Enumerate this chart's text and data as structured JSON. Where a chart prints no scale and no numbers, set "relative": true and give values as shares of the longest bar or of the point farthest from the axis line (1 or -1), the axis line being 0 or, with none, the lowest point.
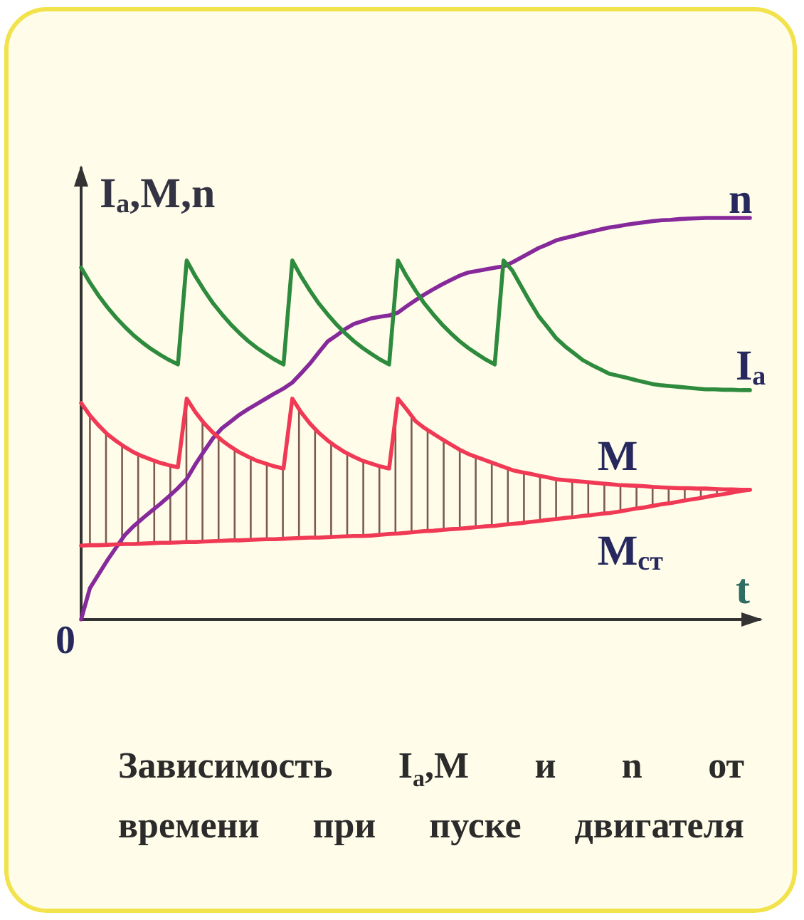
{
  "chart_data": {
    "type": "line",
    "title": "Зависимость I$_{a}$,M и n от времени при пуске двигателя",
    "xlabel": "t",
    "ylabel": "I$_{a}$,M,n",
    "annotations": [
      "0"
    ],
    "relative": true,
    "categories": [
      null,
      null,
      null,
      null,
      null,
      null,
      null,
      null,
      null,
      null,
      null,
      null,
      null,
      null,
      null,
      null,
      null,
      null,
      null,
      null,
      null,
      null,
      null,
      null,
      null,
      null,
      null,
      null,
      null,
      null,
      null,
      null,
      null,
      null,
      null,
      null,
      null,
      null,
      null,
      null,
      null,
      null,
      null,
      null,
      null,
      null,
      null,
      null,
      null,
      null,
      null,
      null,
      null,
      null,
      null,
      null,
      null,
      null,
      null,
      null,
      null,
      null,
      null,
      null,
      null,
      null,
      null,
      null,
      null,
      null,
      null,
      null,
      null,
      null,
      null,
      null,
      null
    ],
    "series": [
      {
        "name": "n",
        "color": "#86299a",
        "values": [
          0,
          0.078,
          0.113,
          0.148,
          0.18,
          0.211,
          0.233,
          0.252,
          0.27,
          0.288,
          0.307,
          0.327,
          0.35,
          0.387,
          0.42,
          0.452,
          0.476,
          0.493,
          0.51,
          0.524,
          0.537,
          0.55,
          0.563,
          0.575,
          0.59,
          0.613,
          0.637,
          0.665,
          0.692,
          0.707,
          0.723,
          0.736,
          0.743,
          0.75,
          0.754,
          0.757,
          0.764,
          0.78,
          0.795,
          0.809,
          0.822,
          0.834,
          0.845,
          0.856,
          0.864,
          0.868,
          0.872,
          0.876,
          0.879,
          0.889,
          0.901,
          0.913,
          0.925,
          0.934,
          0.944,
          0.95,
          0.955,
          0.961,
          0.966,
          0.971,
          0.976,
          0.979,
          0.983,
          0.986,
          0.989,
          0.992,
          0.994,
          0.995,
          0.997,
          0.998,
          0.999,
          1,
          1,
          1,
          1,
          1,
          1
        ]
      },
      {
        "name": "I$_{a}$",
        "color": "#2e8b3e",
        "values": [
          0.876,
          0.839,
          0.806,
          0.777,
          0.751,
          0.728,
          0.707,
          0.689,
          0.673,
          0.659,
          0.646,
          0.635,
          0.894,
          0.854,
          0.819,
          0.787,
          0.76,
          0.735,
          0.713,
          0.693,
          0.676,
          0.661,
          0.647,
          0.635,
          0.894,
          0.854,
          0.819,
          0.787,
          0.76,
          0.735,
          0.713,
          0.693,
          0.676,
          0.661,
          0.647,
          0.635,
          0.894,
          0.854,
          0.819,
          0.787,
          0.76,
          0.735,
          0.713,
          0.693,
          0.676,
          0.661,
          0.647,
          0.635,
          0.894,
          0.869,
          0.83,
          0.791,
          0.755,
          0.728,
          0.7,
          0.68,
          0.663,
          0.646,
          0.634,
          0.623,
          0.612,
          0.607,
          0.602,
          0.596,
          0.591,
          0.586,
          0.583,
          0.581,
          0.579,
          0.577,
          0.575,
          0.573,
          0.573,
          0.572,
          0.572,
          0.571,
          0.571
        ]
      },
      {
        "name": "M",
        "color": "#f03a55",
        "values": [
          0.539,
          0.508,
          0.483,
          0.461,
          0.444,
          0.429,
          0.416,
          0.406,
          0.398,
          0.39,
          0.384,
          0.379,
          0.55,
          0.516,
          0.488,
          0.465,
          0.446,
          0.43,
          0.416,
          0.405,
          0.395,
          0.388,
          0.381,
          0.376,
          0.55,
          0.516,
          0.488,
          0.465,
          0.446,
          0.43,
          0.416,
          0.405,
          0.395,
          0.388,
          0.381,
          0.376,
          0.55,
          0.523,
          0.494,
          0.477,
          0.463,
          0.449,
          0.436,
          0.423,
          0.412,
          0.404,
          0.396,
          0.388,
          0.38,
          0.372,
          0.367,
          0.363,
          0.358,
          0.354,
          0.349,
          0.347,
          0.345,
          0.343,
          0.341,
          0.339,
          0.337,
          0.335,
          0.334,
          0.333,
          0.332,
          0.33,
          0.329,
          0.328,
          0.327,
          0.327,
          0.326,
          0.326,
          0.325,
          0.324,
          0.324,
          0.323,
          0.323
        ]
      },
      {
        "name": "M$_{ст}$",
        "color": "#f03a55",
        "values": [
          0.184,
          0.185,
          0.185,
          0.186,
          0.187,
          0.188,
          0.188,
          0.189,
          0.19,
          0.191,
          0.191,
          0.192,
          0.193,
          0.193,
          0.194,
          0.195,
          0.196,
          0.197,
          0.197,
          0.198,
          0.199,
          0.2,
          0.2,
          0.201,
          0.202,
          0.203,
          0.204,
          0.204,
          0.205,
          0.206,
          0.207,
          0.208,
          0.208,
          0.209,
          0.211,
          0.213,
          0.214,
          0.216,
          0.218,
          0.22,
          0.221,
          0.223,
          0.225,
          0.226,
          0.228,
          0.23,
          0.232,
          0.233,
          0.236,
          0.238,
          0.24,
          0.243,
          0.245,
          0.248,
          0.25,
          0.253,
          0.255,
          0.258,
          0.26,
          0.263,
          0.265,
          0.268,
          0.272,
          0.276,
          0.279,
          0.283,
          0.287,
          0.29,
          0.294,
          0.298,
          0.301,
          0.305,
          0.309,
          0.312,
          0.316,
          0.32,
          0.323
        ]
      }
    ]
  }
}
